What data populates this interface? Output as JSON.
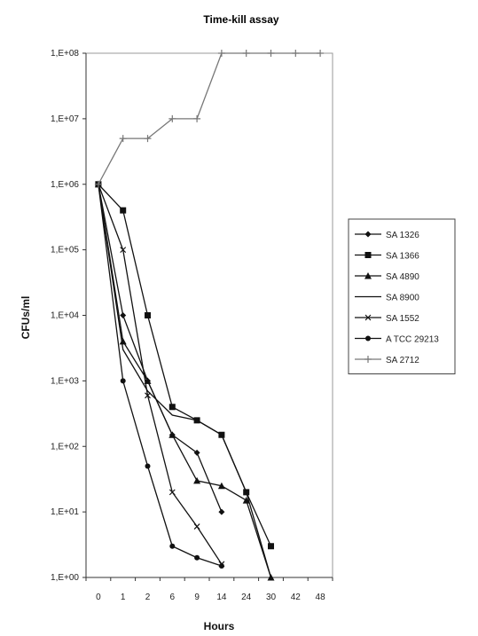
{
  "chart_data": {
    "type": "line",
    "title": "Time-kill assay",
    "xlabel": "Hours",
    "ylabel": "CFUs/ml",
    "x_categories": [
      "0",
      "1",
      "2",
      "6",
      "9",
      "14",
      "24",
      "30",
      "42",
      "48"
    ],
    "y_scale": "log",
    "ylim": [
      1,
      100000000
    ],
    "y_tick_labels": [
      "1,E+08",
      "1,E+07",
      "1,E+06",
      "1,E+05",
      "1,E+04",
      "1,E+03",
      "1,E+02",
      "1,E+01",
      "1,E+00"
    ],
    "grid": false,
    "legend_position": "right",
    "series": [
      {
        "name": "SA 1326",
        "marker": "diamond",
        "color": "#111111",
        "points": [
          [
            0,
            1000000
          ],
          [
            1,
            10000
          ],
          [
            2,
            1000
          ],
          [
            6,
            150
          ],
          [
            9,
            80
          ],
          [
            14,
            10
          ]
        ]
      },
      {
        "name": "SA 1366",
        "marker": "square",
        "color": "#111111",
        "points": [
          [
            0,
            1000000
          ],
          [
            1,
            400000
          ],
          [
            2,
            10000
          ],
          [
            6,
            400
          ],
          [
            9,
            250
          ],
          [
            14,
            150
          ],
          [
            24,
            20
          ],
          [
            30,
            3
          ]
        ]
      },
      {
        "name": "SA 4890",
        "marker": "triangle",
        "color": "#111111",
        "points": [
          [
            0,
            1000000
          ],
          [
            1,
            4000
          ],
          [
            2,
            1000
          ],
          [
            6,
            150
          ],
          [
            9,
            30
          ],
          [
            14,
            25
          ],
          [
            24,
            15
          ],
          [
            30,
            1
          ]
        ]
      },
      {
        "name": "SA 8900",
        "marker": "none",
        "color": "#111111",
        "points": [
          [
            0,
            1000000
          ],
          [
            1,
            3000
          ],
          [
            2,
            700
          ],
          [
            6,
            300
          ],
          [
            9,
            250
          ],
          [
            14,
            150
          ],
          [
            24,
            20
          ],
          [
            30,
            1
          ]
        ]
      },
      {
        "name": "SA 1552",
        "marker": "cross",
        "color": "#111111",
        "points": [
          [
            0,
            1000000
          ],
          [
            1,
            100000
          ],
          [
            2,
            600
          ],
          [
            6,
            20
          ],
          [
            9,
            6
          ],
          [
            14,
            1.6
          ]
        ]
      },
      {
        "name": "A TCC 29213",
        "marker": "circle",
        "color": "#111111",
        "points": [
          [
            0,
            1000000
          ],
          [
            1,
            1000
          ],
          [
            2,
            50
          ],
          [
            6,
            3
          ],
          [
            9,
            2
          ],
          [
            14,
            1.5
          ]
        ]
      },
      {
        "name": "SA 2712",
        "marker": "plus",
        "color": "#777777",
        "points": [
          [
            0,
            1000000
          ],
          [
            1,
            5000000
          ],
          [
            2,
            5000000
          ],
          [
            6,
            10000000
          ],
          [
            9,
            10000000
          ],
          [
            14,
            100000000
          ],
          [
            24,
            100000000
          ],
          [
            30,
            100000000
          ],
          [
            42,
            100000000
          ],
          [
            48,
            100000000
          ]
        ]
      }
    ]
  }
}
